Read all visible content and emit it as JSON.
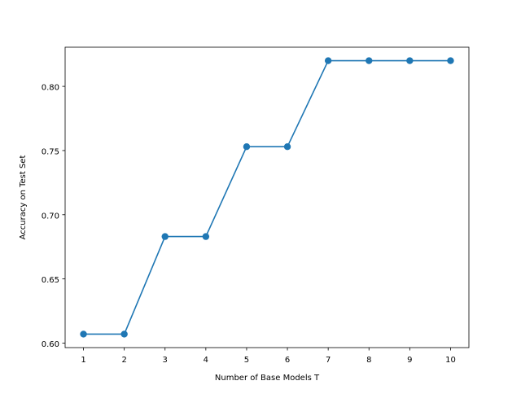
{
  "chart_data": {
    "type": "line",
    "title": "",
    "xlabel": "Number of Base Models T",
    "ylabel": "Accuracy on Test Set",
    "xlim": [
      0.55,
      10.45
    ],
    "ylim": [
      0.5965,
      0.8305
    ],
    "x_ticks": [
      1,
      2,
      3,
      4,
      5,
      6,
      7,
      8,
      9,
      10
    ],
    "x_tick_labels": [
      "1",
      "2",
      "3",
      "4",
      "5",
      "6",
      "7",
      "8",
      "9",
      "10"
    ],
    "y_ticks": [
      0.6,
      0.65,
      0.7,
      0.75,
      0.8
    ],
    "y_tick_labels": [
      "0.60",
      "0.65",
      "0.70",
      "0.75",
      "0.80"
    ],
    "grid": false,
    "legend": "none",
    "series": [
      {
        "color": "#1f77b4",
        "marker": "circle",
        "x": [
          1,
          2,
          3,
          4,
          5,
          6,
          7,
          8,
          9,
          10
        ],
        "values": [
          0.607,
          0.607,
          0.683,
          0.683,
          0.753,
          0.753,
          0.82,
          0.82,
          0.82,
          0.82
        ]
      }
    ]
  }
}
